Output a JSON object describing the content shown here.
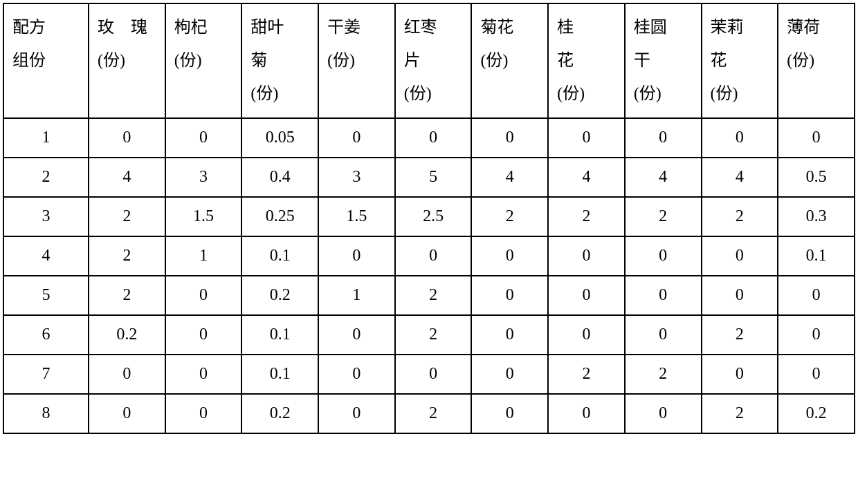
{
  "table": {
    "columns": [
      {
        "line1": "配方",
        "line2": "组份",
        "line3": ""
      },
      {
        "line1": "玫　瑰",
        "line2": "(份)",
        "line3": ""
      },
      {
        "line1": "枸杞",
        "line2": "(份)",
        "line3": ""
      },
      {
        "line1": "甜叶",
        "line2": "菊",
        "line3": "(份)"
      },
      {
        "line1": "干姜",
        "line2": "(份)",
        "line3": ""
      },
      {
        "line1": "红枣",
        "line2": "片",
        "line3": "(份)"
      },
      {
        "line1": "菊花",
        "line2": "(份)",
        "line3": ""
      },
      {
        "line1": "桂",
        "line2": "花",
        "line3": "(份)"
      },
      {
        "line1": "桂圆",
        "line2": "干",
        "line3": "(份)"
      },
      {
        "line1": "茉莉",
        "line2": "花",
        "line3": "(份)"
      },
      {
        "line1": "薄荷",
        "line2": "(份)",
        "line3": ""
      }
    ],
    "rows": [
      [
        "1",
        "0",
        "0",
        "0.05",
        "0",
        "0",
        "0",
        "0",
        "0",
        "0",
        "0"
      ],
      [
        "2",
        "4",
        "3",
        "0.4",
        "3",
        "5",
        "4",
        "4",
        "4",
        "4",
        "0.5"
      ],
      [
        "3",
        "2",
        "1.5",
        "0.25",
        "1.5",
        "2.5",
        "2",
        "2",
        "2",
        "2",
        "0.3"
      ],
      [
        "4",
        "2",
        "1",
        "0.1",
        "0",
        "0",
        "0",
        "0",
        "0",
        "0",
        "0.1"
      ],
      [
        "5",
        "2",
        "0",
        "0.2",
        "1",
        "2",
        "0",
        "0",
        "0",
        "0",
        "0"
      ],
      [
        "6",
        "0.2",
        "0",
        "0.1",
        "0",
        "2",
        "0",
        "0",
        "0",
        "2",
        "0"
      ],
      [
        "7",
        "0",
        "0",
        "0.1",
        "0",
        "0",
        "0",
        "2",
        "2",
        "0",
        "0"
      ],
      [
        "8",
        "0",
        "0",
        "0.2",
        "0",
        "2",
        "0",
        "0",
        "0",
        "2",
        "0.2"
      ]
    ],
    "styling": {
      "border_color": "#000000",
      "border_width": 2,
      "background_color": "#ffffff",
      "font_family": "SimSun",
      "header_fontsize": 24,
      "cell_fontsize": 24,
      "text_color": "#000000"
    }
  }
}
